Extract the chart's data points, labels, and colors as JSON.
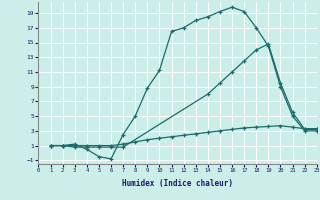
{
  "xlabel": "Humidex (Indice chaleur)",
  "bg_color": "#cceee8",
  "grid_color": "#ffffff",
  "line_color": "#1a6b6b",
  "line1": {
    "x": [
      1,
      2,
      3,
      4,
      5,
      6,
      7,
      8,
      9,
      10,
      11,
      12,
      13,
      14,
      15,
      16,
      17,
      18,
      19,
      20,
      21,
      22,
      23
    ],
    "y": [
      1,
      1,
      1.2,
      0.5,
      -0.5,
      -0.8,
      2.5,
      5,
      8.8,
      11.2,
      16.5,
      17,
      18,
      18.5,
      19.2,
      19.8,
      19.2,
      17,
      14.5,
      9,
      5,
      3,
      3
    ]
  },
  "line2": {
    "x": [
      1,
      2,
      3,
      4,
      5,
      6,
      7,
      14,
      15,
      16,
      17,
      18,
      19,
      20,
      21,
      22,
      23
    ],
    "y": [
      1,
      1,
      0.8,
      0.8,
      0.8,
      0.8,
      0.8,
      8,
      9.5,
      11,
      12.5,
      14,
      14.8,
      9.5,
      5.5,
      3.2,
      3.2
    ]
  },
  "line3": {
    "x": [
      1,
      2,
      3,
      4,
      5,
      6,
      7,
      8,
      9,
      10,
      11,
      12,
      13,
      14,
      15,
      16,
      17,
      18,
      19,
      20,
      21,
      22,
      23
    ],
    "y": [
      1,
      1,
      1,
      1,
      1,
      1,
      1.2,
      1.5,
      1.8,
      2.0,
      2.2,
      2.4,
      2.6,
      2.8,
      3.0,
      3.2,
      3.4,
      3.5,
      3.6,
      3.7,
      3.5,
      3.3,
      3.3
    ]
  },
  "xlim": [
    0,
    23
  ],
  "ylim": [
    -1.5,
    20.5
  ],
  "yticks": [
    -1,
    1,
    3,
    5,
    7,
    9,
    11,
    13,
    15,
    17,
    19
  ],
  "xticks": [
    0,
    1,
    2,
    3,
    4,
    5,
    6,
    7,
    8,
    9,
    10,
    11,
    12,
    13,
    14,
    15,
    16,
    17,
    18,
    19,
    20,
    21,
    22,
    23
  ]
}
